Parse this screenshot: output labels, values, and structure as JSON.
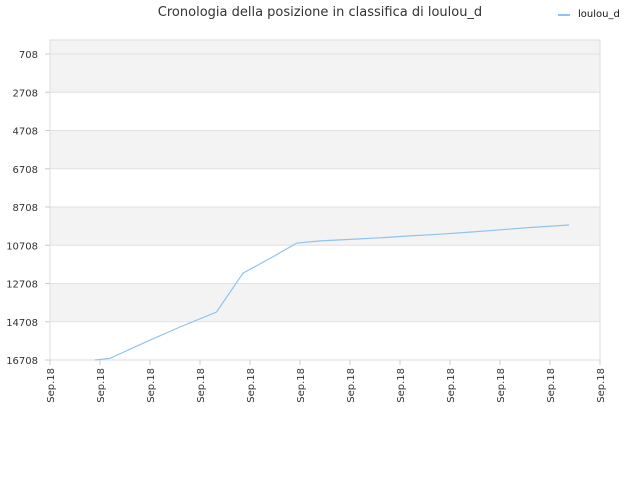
{
  "chart_data": {
    "type": "line",
    "title": "Cronologia della posizione in classifica di loulou_d",
    "legend": {
      "position": "top-right"
    },
    "y_axis": {
      "inverted": true,
      "range": [
        16708,
        708
      ],
      "ticks": [
        708,
        2708,
        4708,
        6708,
        8708,
        10708,
        12708,
        14708,
        16708
      ]
    },
    "x_axis": {
      "ticks": [
        "Sep.18",
        "Sep.18",
        "Sep.18",
        "Sep.18",
        "Sep.18",
        "Sep.18",
        "Sep.18",
        "Sep.18",
        "Sep.18",
        "Sep.18",
        "Sep.18",
        "Sep.18"
      ]
    },
    "grid": true,
    "series": [
      {
        "name": "loulou_d",
        "color": "#90c3f0",
        "x": [
          0.9,
          1.2,
          1.93,
          2.6,
          3.33,
          3.86,
          4.5,
          4.93,
          5.4,
          6.0,
          6.6,
          7.2,
          7.8,
          8.4,
          9.0,
          9.6,
          10.38
        ],
        "y": [
          16708,
          16620,
          15750,
          14980,
          14200,
          12170,
          11250,
          10600,
          10480,
          10400,
          10320,
          10220,
          10130,
          10020,
          9900,
          9780,
          9650
        ]
      }
    ]
  }
}
